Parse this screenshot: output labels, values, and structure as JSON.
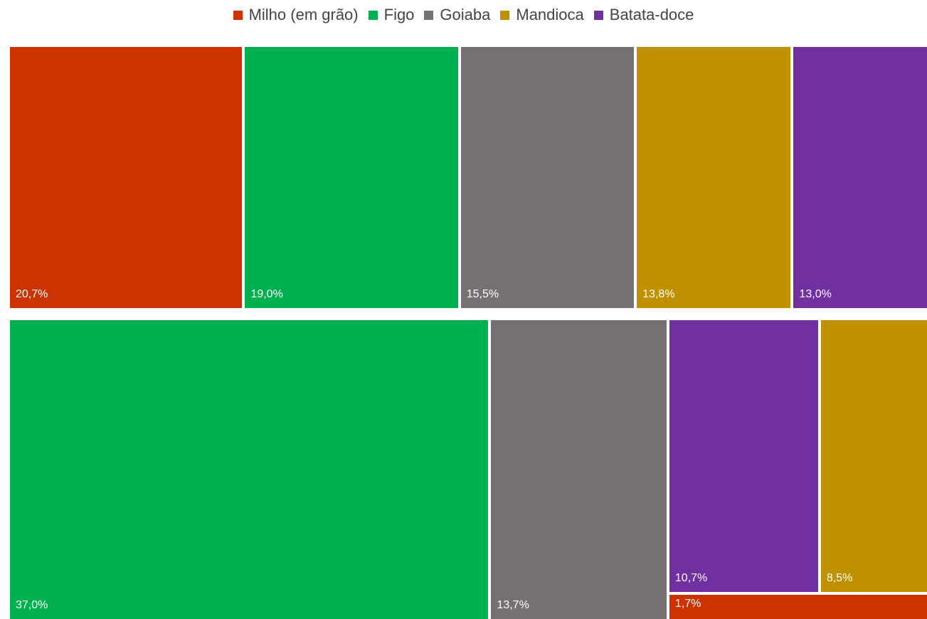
{
  "chart_data": {
    "type": "treemap",
    "legend_position": "top",
    "series": [
      {
        "name": "Milho (em grão)",
        "color": "#cc3300"
      },
      {
        "name": "Figo",
        "color": "#00b050"
      },
      {
        "name": "Goiaba",
        "color": "#767171"
      },
      {
        "name": "Mandioca",
        "color": "#bf9000"
      },
      {
        "name": "Batata-doce",
        "color": "#7030a0"
      }
    ],
    "groups": [
      {
        "tiles": [
          {
            "series": "Milho (em grão)",
            "value": 20.7,
            "label": "20,7%"
          },
          {
            "series": "Figo",
            "value": 19.0,
            "label": "19,0%"
          },
          {
            "series": "Goiaba",
            "value": 15.5,
            "label": "15,5%"
          },
          {
            "series": "Mandioca",
            "value": 13.8,
            "label": "13,8%"
          },
          {
            "series": "Batata-doce",
            "value": 13.0,
            "label": "13,0%"
          }
        ]
      },
      {
        "tiles": [
          {
            "series": "Figo",
            "value": 37.0,
            "label": "37,0%"
          },
          {
            "series": "Goiaba",
            "value": 13.7,
            "label": "13,7%"
          },
          {
            "series": "Batata-doce",
            "value": 10.7,
            "label": "10,7%"
          },
          {
            "series": "Mandioca",
            "value": 8.5,
            "label": "8,5%"
          },
          {
            "series": "Milho (em grão)",
            "value": 1.7,
            "label": "1,7%"
          }
        ]
      }
    ]
  }
}
